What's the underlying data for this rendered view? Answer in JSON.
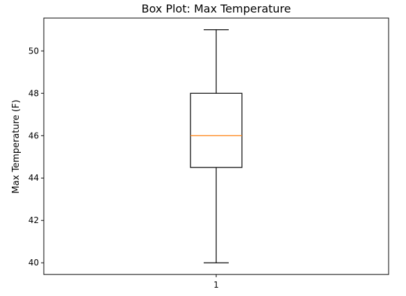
{
  "chart_data": {
    "type": "boxplot",
    "title": "Box Plot: Max Temperature",
    "xlabel": "",
    "ylabel": "Max Temperature (F)",
    "categories": [
      "1"
    ],
    "ylim": [
      39.45,
      51.55
    ],
    "yticks": [
      40,
      42,
      44,
      46,
      48,
      50
    ],
    "grid": false,
    "boxes": [
      {
        "category": "1",
        "whisker_low": 40,
        "q1": 44.5,
        "median": 46,
        "q3": 48,
        "whisker_high": 51
      }
    ],
    "colors": {
      "box": "#000000",
      "median": "#ff7f0e",
      "axes": "#000000"
    }
  }
}
